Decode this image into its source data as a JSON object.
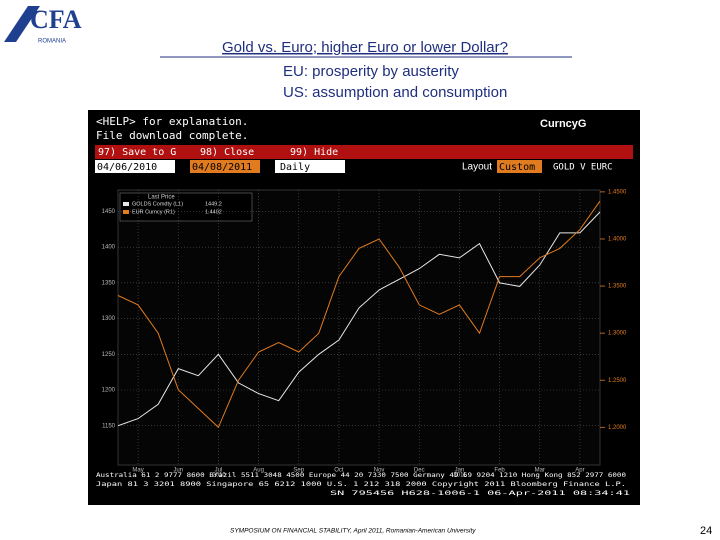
{
  "header": {
    "logo": "CFA",
    "logo_sub": "ROMANIA",
    "title": "Gold vs. Euro; higher Euro or lower Dollar?",
    "subtitles": [
      "EU: prosperity by austerity",
      "US: assumption and consumption"
    ]
  },
  "terminal": {
    "help": "<HELP> for explanation.",
    "status": "File download complete.",
    "screen": "CurncyG",
    "buttons": [
      "97) Save to G",
      "98) Close",
      "99) Hide"
    ],
    "start_date": "04/06/2010",
    "end_date": "04/08/2011",
    "period": "Daily",
    "layout_label": "Layout",
    "layout": "Custom",
    "security": "GOLD V EURC",
    "legend_title": "Last Price",
    "footer": [
      "Australia 61 2 9777 8600 Brazil 5511 3048 4500 Europe 44 20 7330 7500 Germany 49 69 9204 1210 Hong Kong 852 2977 6000",
      "Japan 81 3 3201 8900 Singapore 65 6212 1000 U.S. 1 212 318 2000 Copyright 2011 Bloomberg Finance L.P.",
      "SN 795456 H628-1006-1 06-Apr-2011 08:34:41"
    ]
  },
  "chart_data": {
    "type": "line",
    "categories": [
      null,
      "May",
      null,
      "Jun",
      null,
      "Jul",
      null,
      "Aug",
      null,
      "Sep",
      null,
      "Oct",
      null,
      "Nov",
      null,
      "Dec",
      null,
      "Jan",
      null,
      "Feb",
      null,
      "Mar",
      null,
      "Apr",
      null
    ],
    "series": [
      {
        "name": "GOLDS Comdty (L1)",
        "color": "#e8e8e8",
        "last": 1449.2,
        "values": [
          1150,
          1160,
          1180,
          1230,
          1220,
          1250,
          1210,
          1195,
          1185,
          1225,
          1250,
          1270,
          1315,
          1340,
          1355,
          1370,
          1390,
          1385,
          1405,
          1350,
          1345,
          1375,
          1420,
          1420,
          1449.2
        ]
      },
      {
        "name": "EUR Curncy (R1)",
        "color": "#e07b20",
        "axis": "y2",
        "last": 1.4402,
        "values": [
          1.34,
          1.33,
          1.3,
          1.24,
          1.22,
          1.2,
          1.25,
          1.28,
          1.29,
          1.28,
          1.3,
          1.36,
          1.39,
          1.4,
          1.37,
          1.33,
          1.32,
          1.33,
          1.3,
          1.36,
          1.36,
          1.38,
          1.39,
          1.41,
          1.4402
        ]
      }
    ],
    "ylim": [
      1095,
      1480
    ],
    "yticks": [
      1150,
      1200,
      1250,
      1300,
      1350,
      1400,
      1450
    ],
    "y2lim": [
      1.16,
      1.452
    ],
    "y2ticks": [
      {
        "value": 1.2,
        "label": "1.2000"
      },
      {
        "value": 1.25,
        "label": "1.2500"
      },
      {
        "value": 1.3,
        "label": "1.3000"
      },
      {
        "value": 1.35,
        "label": "1.3500"
      },
      {
        "value": 1.4,
        "label": "1.4000"
      },
      {
        "value": 1.45,
        "label": "1.4500"
      }
    ],
    "grid": true,
    "annotations": [
      "2010",
      "2011"
    ]
  },
  "footer": {
    "text": "SYMPOSIUM ON FINANCIAL STABILITY, April 2011, Romanian-American University",
    "page": "24"
  }
}
